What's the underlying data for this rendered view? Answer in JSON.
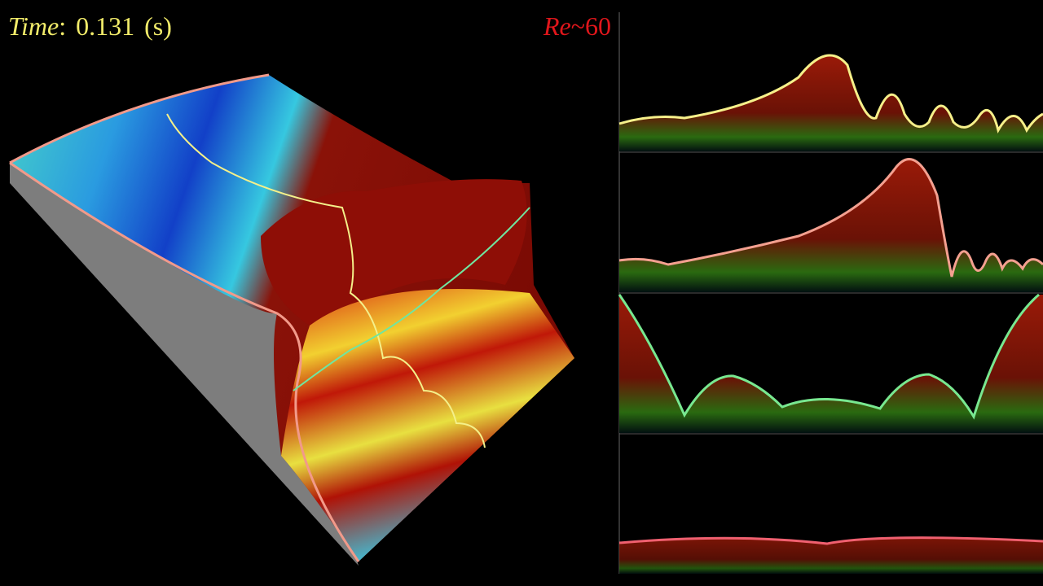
{
  "time": {
    "label": "Time",
    "separator": ":",
    "value": "0.131",
    "unit": "(s)"
  },
  "reynolds": {
    "symbol": "Re",
    "relation": "~",
    "value": "60"
  }
}
